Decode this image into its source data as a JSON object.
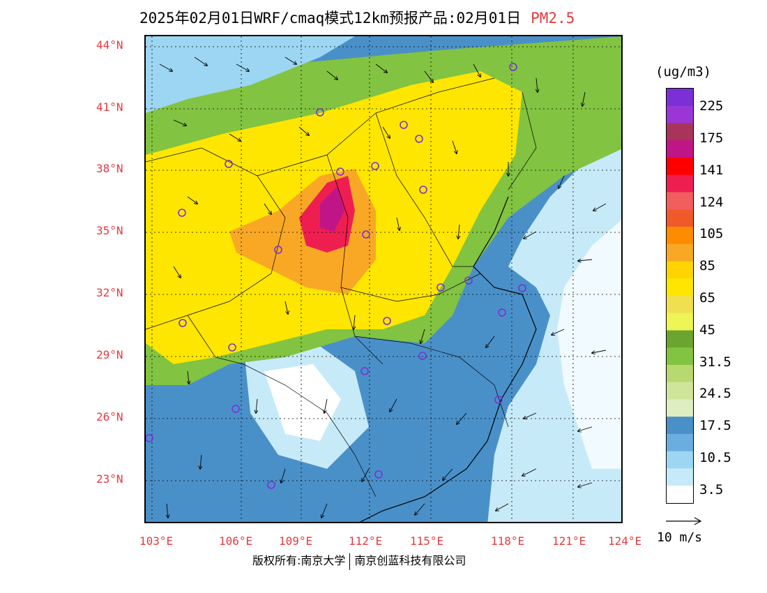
{
  "title": {
    "text": "2025年02月01日WRF/cmaq模式12km预报产品:02月01日",
    "pollutant": "PM2.5"
  },
  "map": {
    "lat_labels": [
      "44°N",
      "41°N",
      "38°N",
      "35°N",
      "32°N",
      "29°N",
      "26°N",
      "23°N"
    ],
    "lon_labels": [
      "103°E",
      "106°E",
      "109°E",
      "112°E",
      "115°E",
      "118°E",
      "121°E",
      "124°E"
    ],
    "colors": {
      "background_ocean": "#cfeaf7",
      "land_low": "#3b8fd0",
      "grid": "#000000"
    }
  },
  "legend": {
    "units": "(ug/m3)",
    "labels": [
      "225",
      "175",
      "141",
      "124",
      "105",
      "85",
      "65",
      "45",
      "31.5",
      "24.5",
      "17.5",
      "10.5",
      "3.5"
    ],
    "colors": [
      "#7b2fd6",
      "#9b36d6",
      "#a8335b",
      "#c01586",
      "#ff0000",
      "#ef1e50",
      "#f25e5e",
      "#f05a2a",
      "#ff8c00",
      "#f9a825",
      "#ffd400",
      "#ffe600",
      "#f0e050",
      "#eef555",
      "#6ba530",
      "#82c341",
      "#b8d870",
      "#cfe59a",
      "#deeec0",
      "#4a90c8",
      "#6aaee0",
      "#9dd6f2",
      "#c7eaf9",
      "#ffffff"
    ]
  },
  "reference": {
    "label": "10 m/s"
  },
  "footer": {
    "left": "版权所有:南京大学",
    "right": "南京创蓝科技有限公司"
  }
}
